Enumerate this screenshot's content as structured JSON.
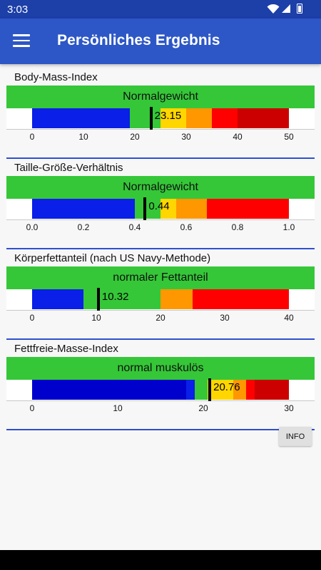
{
  "status_bar": {
    "time": "3:03",
    "icons": [
      "wifi-icon",
      "signal-icon",
      "battery-icon"
    ]
  },
  "app_bar": {
    "title": "Persönliches Ergebnis",
    "menu_icon": "hamburger-menu-icon"
  },
  "sections": [
    {
      "title": "Body-Mass-Index",
      "category": "Normalgewicht",
      "category_color": "#35c738",
      "value": 23.15,
      "value_label": "23.15",
      "scale_min": 0,
      "scale_max": 50,
      "ticks": [
        "0",
        "10",
        "20",
        "30",
        "40",
        "50"
      ],
      "tick_values": [
        0,
        10,
        20,
        30,
        40,
        50
      ],
      "segments": [
        {
          "from": 0,
          "to": 19,
          "color": "#0a1fe8"
        },
        {
          "from": 19,
          "to": 25,
          "color": "#35c738"
        },
        {
          "from": 25,
          "to": 30,
          "color": "#ffd600"
        },
        {
          "from": 30,
          "to": 35,
          "color": "#ff9800"
        },
        {
          "from": 35,
          "to": 40,
          "color": "#ff0000"
        },
        {
          "from": 40,
          "to": 50,
          "color": "#cc0000"
        }
      ]
    },
    {
      "title": "Taille-Größe-Verhältnis",
      "category": "Normalgewicht",
      "category_color": "#35c738",
      "value": 0.44,
      "value_label": "0.44",
      "scale_min": 0,
      "scale_max": 1,
      "ticks": [
        "0.0",
        "0.2",
        "0.4",
        "0.6",
        "0.8",
        "1.0"
      ],
      "tick_values": [
        0,
        0.2,
        0.4,
        0.6,
        0.8,
        1.0
      ],
      "segments": [
        {
          "from": 0,
          "to": 0.4,
          "color": "#0a1fe8"
        },
        {
          "from": 0.4,
          "to": 0.5,
          "color": "#35c738"
        },
        {
          "from": 0.5,
          "to": 0.56,
          "color": "#ffd600"
        },
        {
          "from": 0.56,
          "to": 0.68,
          "color": "#ff9800"
        },
        {
          "from": 0.68,
          "to": 1.0,
          "color": "#ff0000"
        }
      ]
    },
    {
      "title": "Körperfettanteil (nach US Navy-Methode)",
      "category": "normaler Fettanteil",
      "category_color": "#35c738",
      "value": 10.32,
      "value_label": "10.32",
      "scale_min": 0,
      "scale_max": 40,
      "ticks": [
        "0",
        "10",
        "20",
        "30",
        "40"
      ],
      "tick_values": [
        0,
        10,
        20,
        30,
        40
      ],
      "segments": [
        {
          "from": 0,
          "to": 8,
          "color": "#0a1fe8"
        },
        {
          "from": 8,
          "to": 10.32,
          "color": "#35c738"
        },
        {
          "from": 10.32,
          "to": 20,
          "color": "#35c738"
        },
        {
          "from": 20,
          "to": 25,
          "color": "#ff9800"
        },
        {
          "from": 25,
          "to": 40,
          "color": "#ff0000"
        }
      ]
    },
    {
      "title": "Fettfreie-Masse-Index",
      "category": "normal muskulös",
      "category_color": "#35c738",
      "value": 20.76,
      "value_label": "20.76",
      "scale_min": 0,
      "scale_max": 30,
      "ticks": [
        "0",
        "10",
        "20",
        "30"
      ],
      "tick_values": [
        0,
        10,
        20,
        30
      ],
      "segments": [
        {
          "from": 0,
          "to": 18,
          "color": "#0000cc"
        },
        {
          "from": 18,
          "to": 19,
          "color": "#0a1fe8"
        },
        {
          "from": 19,
          "to": 20.5,
          "color": "#35c738"
        },
        {
          "from": 20.5,
          "to": 23.5,
          "color": "#ffd600"
        },
        {
          "from": 23.5,
          "to": 25,
          "color": "#ff9800"
        },
        {
          "from": 25,
          "to": 26,
          "color": "#ff0000"
        },
        {
          "from": 26,
          "to": 30,
          "color": "#cc0000"
        }
      ]
    }
  ],
  "info_button": {
    "label": "INFO"
  }
}
